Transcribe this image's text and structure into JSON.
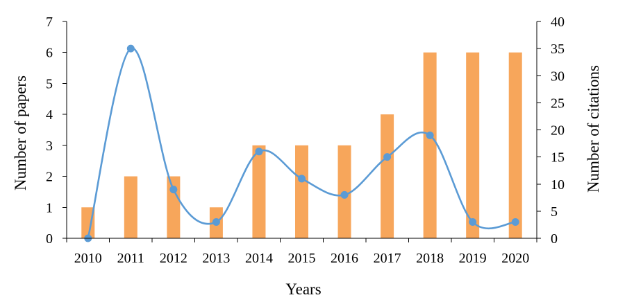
{
  "chart_data": {
    "type": "bar",
    "categories": [
      "2010",
      "2011",
      "2012",
      "2013",
      "2014",
      "2015",
      "2016",
      "2017",
      "2018",
      "2019",
      "2020"
    ],
    "series": [
      {
        "type": "bar",
        "axis": "left",
        "color": "#F7A65B",
        "values": [
          1,
          2,
          2,
          1,
          3,
          3,
          3,
          4,
          6,
          6,
          6
        ]
      },
      {
        "type": "line",
        "axis": "right",
        "smooth": true,
        "color": "#5B9BD5",
        "values": [
          0,
          35,
          9,
          3,
          16,
          11,
          8,
          15,
          19,
          3,
          3
        ]
      }
    ],
    "xlabel": "Years",
    "ylabel": "Number of papers",
    "y2label": "Number of citations",
    "ylim": [
      0,
      7
    ],
    "y2lim": [
      0,
      40
    ],
    "yticks": [
      "0",
      "1",
      "2",
      "3",
      "4",
      "5",
      "6",
      "7"
    ],
    "y2ticks": [
      "0",
      "5",
      "10",
      "15",
      "20",
      "25",
      "30",
      "35",
      "40"
    ],
    "grid": false,
    "legend": "none"
  }
}
